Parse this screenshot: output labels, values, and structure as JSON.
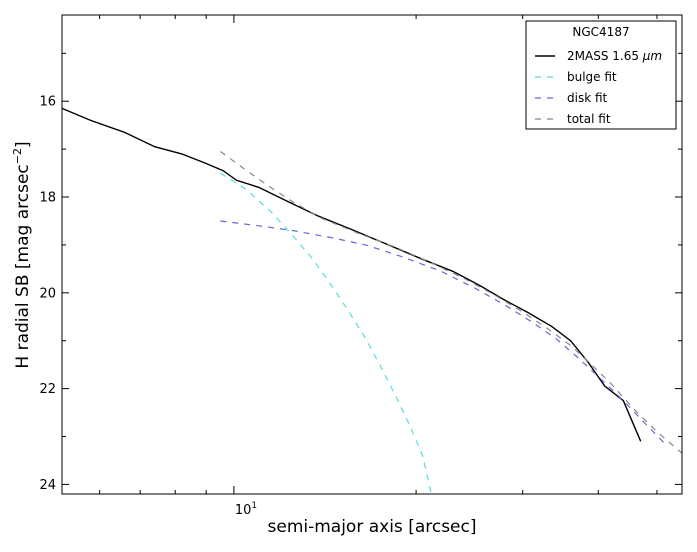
{
  "chart_data": {
    "type": "line",
    "title": "",
    "xlabel": "semi-major axis [arcsec]",
    "ylabel_main": "H radial SB [mag arcsec",
    "ylabel_sup": "−2",
    "ylabel_end": "]",
    "x_scale": "log",
    "xlim": [
      5.2,
      55
    ],
    "ylim": [
      24.2,
      14.2
    ],
    "y_inverted": true,
    "grid": false,
    "legend_position": "top-right",
    "legend_title": "NGC4187",
    "x_major_tick": {
      "value": 10,
      "base": "10",
      "exponent": "1"
    },
    "x_minor_ticks": [
      6,
      7,
      8,
      9,
      20,
      30,
      40,
      50
    ],
    "y_ticks": [
      16,
      18,
      20,
      22,
      24
    ],
    "y_tick_labels": [
      "16",
      "18",
      "20",
      "22",
      "24"
    ],
    "series": [
      {
        "name": "2MASS 1.65 ",
        "name_symbol": "μm",
        "style": "solid",
        "color": "#000000",
        "points": [
          [
            5.2,
            16.15
          ],
          [
            5.8,
            16.4
          ],
          [
            6.6,
            16.65
          ],
          [
            7.4,
            16.95
          ],
          [
            8.2,
            17.1
          ],
          [
            9.0,
            17.3
          ],
          [
            9.6,
            17.45
          ],
          [
            10.1,
            17.65
          ],
          [
            11.0,
            17.8
          ],
          [
            12.3,
            18.1
          ],
          [
            13.8,
            18.4
          ],
          [
            15.8,
            18.7
          ],
          [
            18.0,
            19.0
          ],
          [
            20.5,
            19.3
          ],
          [
            23.0,
            19.55
          ],
          [
            25.5,
            19.85
          ],
          [
            28.0,
            20.15
          ],
          [
            30.5,
            20.4
          ],
          [
            33.5,
            20.7
          ],
          [
            36.0,
            21.0
          ],
          [
            38.5,
            21.45
          ],
          [
            41.0,
            21.95
          ],
          [
            44.0,
            22.25
          ],
          [
            47.0,
            23.1
          ]
        ]
      },
      {
        "name": "bulge fit",
        "style": "dashed",
        "color": "#55dede",
        "points": [
          [
            9.5,
            17.5
          ],
          [
            10.5,
            17.85
          ],
          [
            11.5,
            18.3
          ],
          [
            12.5,
            18.8
          ],
          [
            13.5,
            19.3
          ],
          [
            14.5,
            19.85
          ],
          [
            15.5,
            20.4
          ],
          [
            16.5,
            20.95
          ],
          [
            17.5,
            21.55
          ],
          [
            18.5,
            22.15
          ],
          [
            19.5,
            22.75
          ],
          [
            20.5,
            23.4
          ],
          [
            21.2,
            24.2
          ]
        ]
      },
      {
        "name": "disk fit",
        "style": "dashed",
        "color": "#6666dd",
        "points": [
          [
            9.5,
            18.5
          ],
          [
            11.0,
            18.6
          ],
          [
            12.5,
            18.7
          ],
          [
            14.5,
            18.85
          ],
          [
            16.5,
            19.0
          ],
          [
            19.0,
            19.25
          ],
          [
            22.0,
            19.55
          ],
          [
            25.0,
            19.9
          ],
          [
            28.0,
            20.25
          ],
          [
            31.0,
            20.6
          ],
          [
            34.0,
            20.95
          ],
          [
            37.0,
            21.35
          ],
          [
            40.0,
            21.75
          ],
          [
            44.0,
            22.25
          ],
          [
            48.0,
            22.75
          ],
          [
            52.0,
            23.2
          ]
        ]
      },
      {
        "name": "total fit",
        "style": "dashed",
        "color": "#888888",
        "points": [
          [
            9.5,
            17.05
          ],
          [
            10.5,
            17.45
          ],
          [
            11.5,
            17.8
          ],
          [
            12.5,
            18.1
          ],
          [
            14.0,
            18.45
          ],
          [
            16.0,
            18.75
          ],
          [
            18.5,
            19.05
          ],
          [
            21.0,
            19.35
          ],
          [
            24.0,
            19.7
          ],
          [
            27.0,
            20.05
          ],
          [
            30.0,
            20.4
          ],
          [
            33.0,
            20.75
          ],
          [
            36.0,
            21.1
          ],
          [
            39.0,
            21.5
          ],
          [
            42.0,
            21.9
          ],
          [
            46.0,
            22.45
          ],
          [
            50.0,
            22.9
          ],
          [
            55.0,
            23.35
          ]
        ]
      }
    ]
  }
}
